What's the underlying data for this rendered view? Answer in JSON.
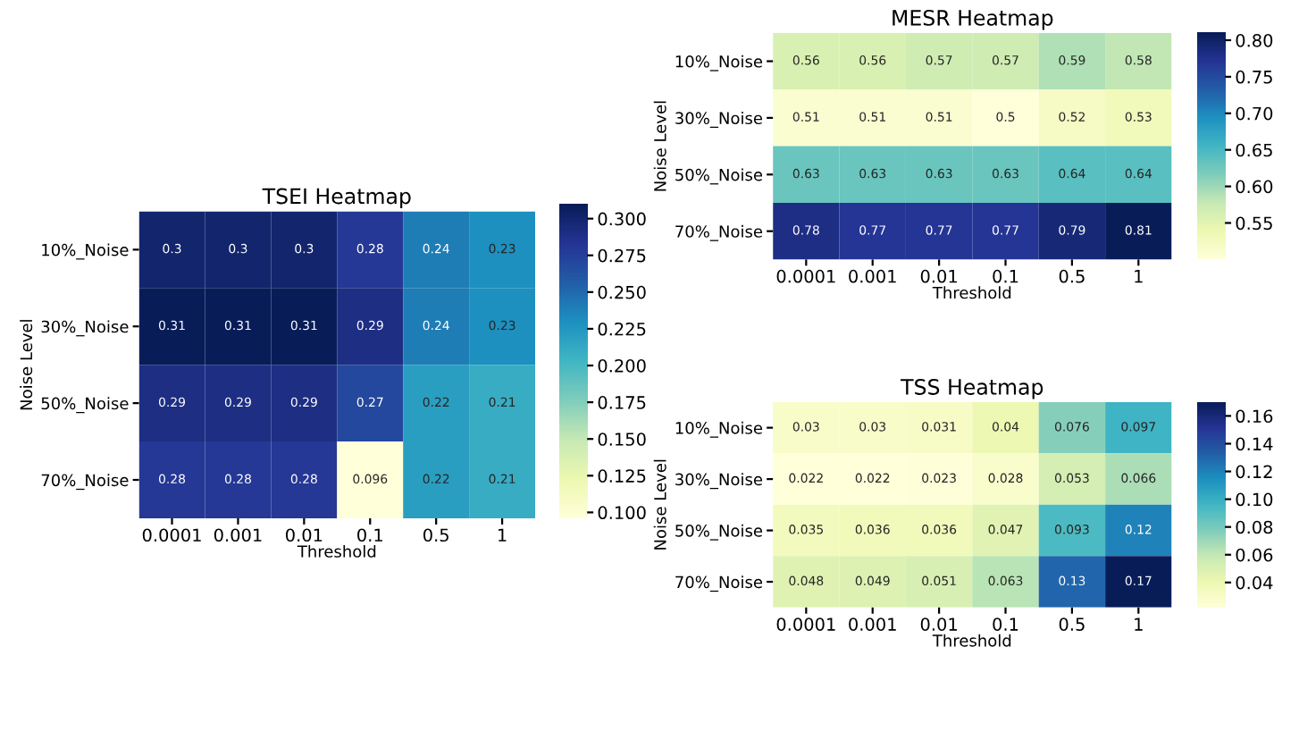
{
  "chart_data": [
    {
      "type": "heatmap",
      "title": "TSEI Heatmap",
      "xlabel": "Threshold",
      "ylabel": "Noise Level",
      "categories": [
        "0.0001",
        "0.001",
        "0.01",
        "0.1",
        "0.5",
        "1"
      ],
      "y_categories": [
        "10%_Noise",
        "30%_Noise",
        "50%_Noise",
        "70%_Noise"
      ],
      "cells": [
        [
          0.3,
          0.3,
          0.3,
          0.28,
          0.24,
          0.23
        ],
        [
          0.31,
          0.31,
          0.31,
          0.29,
          0.24,
          0.23
        ],
        [
          0.29,
          0.29,
          0.29,
          0.27,
          0.22,
          0.21
        ],
        [
          0.28,
          0.28,
          0.28,
          0.096,
          0.22,
          0.21
        ]
      ],
      "clim": [
        0.096,
        0.31
      ],
      "cticks": [
        {
          "value": 0.1,
          "label": "0.100"
        },
        {
          "value": 0.125,
          "label": "0.125"
        },
        {
          "value": 0.15,
          "label": "0.150"
        },
        {
          "value": 0.175,
          "label": "0.175"
        },
        {
          "value": 0.2,
          "label": "0.200"
        },
        {
          "value": 0.225,
          "label": "0.225"
        },
        {
          "value": 0.25,
          "label": "0.250"
        },
        {
          "value": 0.275,
          "label": "0.275"
        },
        {
          "value": 0.3,
          "label": "0.300"
        }
      ],
      "data_labels": true
    },
    {
      "type": "heatmap",
      "title": "MESR Heatmap",
      "xlabel": "Threshold",
      "ylabel": "Noise Level",
      "categories": [
        "0.0001",
        "0.001",
        "0.01",
        "0.1",
        "0.5",
        "1"
      ],
      "y_categories": [
        "10%_Noise",
        "30%_Noise",
        "50%_Noise",
        "70%_Noise"
      ],
      "cells": [
        [
          0.56,
          0.56,
          0.57,
          0.57,
          0.59,
          0.58
        ],
        [
          0.51,
          0.51,
          0.51,
          0.5,
          0.52,
          0.53
        ],
        [
          0.63,
          0.63,
          0.63,
          0.63,
          0.64,
          0.64
        ],
        [
          0.78,
          0.77,
          0.77,
          0.77,
          0.79,
          0.81
        ]
      ],
      "clim": [
        0.5,
        0.81
      ],
      "cticks": [
        0.55,
        {
          "value": 0.6,
          "label": "0.60"
        },
        0.65,
        {
          "value": 0.7,
          "label": "0.70"
        },
        0.75,
        {
          "value": 0.8,
          "label": "0.80"
        }
      ],
      "data_labels": true
    },
    {
      "type": "heatmap",
      "title": "TSS Heatmap",
      "xlabel": "Threshold",
      "ylabel": "Noise Level",
      "categories": [
        "0.0001",
        "0.001",
        "0.01",
        "0.1",
        "0.5",
        "1"
      ],
      "y_categories": [
        "10%_Noise",
        "30%_Noise",
        "50%_Noise",
        "70%_Noise"
      ],
      "cells": [
        [
          0.03,
          0.03,
          0.031,
          0.04,
          0.076,
          0.097
        ],
        [
          0.022,
          0.022,
          0.023,
          0.028,
          0.053,
          0.066
        ],
        [
          0.035,
          0.036,
          0.036,
          0.047,
          0.093,
          0.12
        ],
        [
          0.048,
          0.049,
          0.051,
          0.063,
          0.13,
          0.17
        ]
      ],
      "clim": [
        0.022,
        0.17
      ],
      "cticks": [
        0.04,
        0.06,
        0.08,
        {
          "value": 0.1,
          "label": "0.10"
        },
        0.12,
        0.14,
        0.16
      ],
      "data_labels": true
    }
  ]
}
